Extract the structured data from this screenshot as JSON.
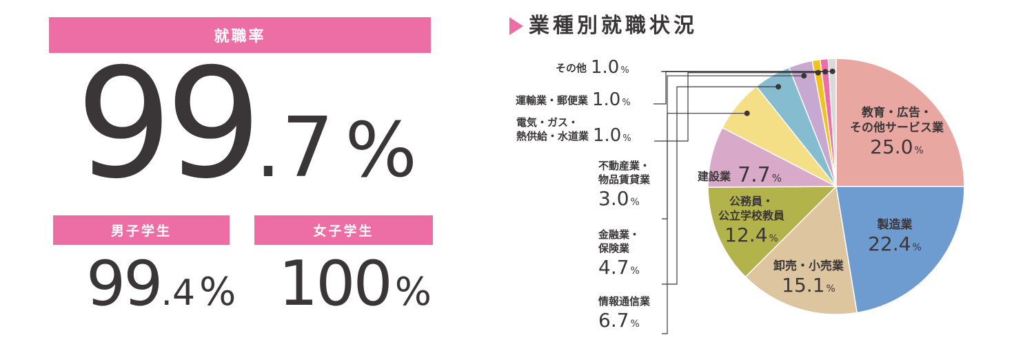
{
  "employment": {
    "overall": {
      "label": "就職率",
      "int": "99",
      "dec": ".7",
      "unit": "%"
    },
    "male": {
      "label": "男子学生",
      "int": "99",
      "dec": ".4",
      "unit": "%"
    },
    "female": {
      "label": "女子学生",
      "int": "100",
      "unit": "%"
    }
  },
  "chart_title": "業種別就職状況",
  "chart_data": {
    "type": "pie",
    "title": "業種別就職状況",
    "unit": "%",
    "slices": [
      {
        "lines": [
          "教育・広告・",
          "その他サービス業"
        ],
        "value": 25.0,
        "value_text": "25.0",
        "color": "#e8a7a1"
      },
      {
        "lines": [
          "製造業"
        ],
        "value": 22.4,
        "value_text": "22.4",
        "color": "#6e9bd0"
      },
      {
        "lines": [
          "卸売・小売業"
        ],
        "value": 15.1,
        "value_text": "15.1",
        "color": "#dcc59f"
      },
      {
        "lines": [
          "公務員・",
          "公立学校教員"
        ],
        "value": 12.4,
        "value_text": "12.4",
        "color": "#b3b34b"
      },
      {
        "lines": [
          "建設業"
        ],
        "value": 7.7,
        "value_text": "7.7",
        "color": "#d8a9c8"
      },
      {
        "lines": [
          "情報通信業"
        ],
        "value": 6.7,
        "value_text": "6.7",
        "color": "#f4df86"
      },
      {
        "lines": [
          "金融業・",
          "保険業"
        ],
        "value": 4.7,
        "value_text": "4.7",
        "color": "#86bcd0"
      },
      {
        "lines": [
          "不動産業・",
          "物品賃貸業"
        ],
        "value": 3.0,
        "value_text": "3.0",
        "color": "#c6a8d0"
      },
      {
        "lines": [
          "電気・ガス・",
          "熱供給・水道業"
        ],
        "value": 1.0,
        "value_text": "1.0",
        "color": "#f1c21a"
      },
      {
        "lines": [
          "運輸業・郵便業"
        ],
        "value": 1.0,
        "value_text": "1.0",
        "color": "#ec6ea5"
      },
      {
        "lines": [
          "その他"
        ],
        "value": 1.0,
        "value_text": "1.0",
        "color": "#d9d9d9"
      }
    ]
  }
}
